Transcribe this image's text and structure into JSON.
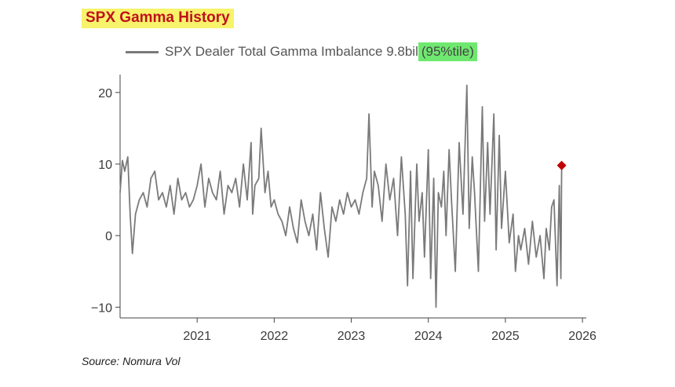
{
  "header": {
    "title": "SPX Gamma History"
  },
  "legend": {
    "series_label": "SPX Dealer Total Gamma Imbalance 9.8bil",
    "highlight": "(95%tile)"
  },
  "source": "Source: Nomura Vol",
  "colors": {
    "line": "#7a7a7a",
    "marker": "#c00000",
    "title_text": "#c0121c",
    "title_bg": "#f7f36a",
    "highlight_bg": "#6fe86f"
  },
  "chart_data": {
    "type": "line",
    "title": "SPX Gamma History",
    "xlabel": "",
    "ylabel": "",
    "xlim": [
      2020.0,
      2026.05
    ],
    "ylim": [
      -11.5,
      22.5
    ],
    "x_ticks": [
      2021,
      2022,
      2023,
      2024,
      2025,
      2026
    ],
    "y_ticks": [
      20,
      10,
      0,
      -10
    ],
    "grid": false,
    "legend_position": "top-left",
    "series": [
      {
        "name": "SPX Dealer Total Gamma Imbalance 9.8bil",
        "x": [
          2020.0,
          2020.03,
          2020.06,
          2020.1,
          2020.13,
          2020.16,
          2020.2,
          2020.25,
          2020.3,
          2020.35,
          2020.4,
          2020.45,
          2020.5,
          2020.55,
          2020.6,
          2020.65,
          2020.7,
          2020.75,
          2020.8,
          2020.85,
          2020.9,
          2020.95,
          2021.0,
          2021.05,
          2021.1,
          2021.15,
          2021.2,
          2021.25,
          2021.3,
          2021.35,
          2021.4,
          2021.45,
          2021.5,
          2021.55,
          2021.6,
          2021.65,
          2021.7,
          2021.72,
          2021.75,
          2021.8,
          2021.83,
          2021.88,
          2021.92,
          2021.96,
          2022.0,
          2022.05,
          2022.1,
          2022.15,
          2022.2,
          2022.25,
          2022.3,
          2022.35,
          2022.4,
          2022.45,
          2022.5,
          2022.55,
          2022.6,
          2022.65,
          2022.7,
          2022.75,
          2022.8,
          2022.85,
          2022.9,
          2022.95,
          2023.0,
          2023.05,
          2023.1,
          2023.15,
          2023.2,
          2023.23,
          2023.27,
          2023.3,
          2023.35,
          2023.4,
          2023.45,
          2023.5,
          2023.55,
          2023.6,
          2023.65,
          2023.7,
          2023.73,
          2023.77,
          2023.8,
          2023.85,
          2023.88,
          2023.92,
          2023.95,
          2024.0,
          2024.03,
          2024.07,
          2024.1,
          2024.13,
          2024.17,
          2024.2,
          2024.23,
          2024.27,
          2024.3,
          2024.35,
          2024.4,
          2024.45,
          2024.5,
          2024.53,
          2024.57,
          2024.6,
          2024.65,
          2024.7,
          2024.73,
          2024.77,
          2024.8,
          2024.85,
          2024.88,
          2024.92,
          2024.95,
          2025.0,
          2025.05,
          2025.1,
          2025.13,
          2025.17,
          2025.2,
          2025.25,
          2025.3,
          2025.35,
          2025.4,
          2025.45,
          2025.5,
          2025.53,
          2025.57,
          2025.6,
          2025.63,
          2025.67,
          2025.7,
          2025.72,
          2025.73
        ],
        "values": [
          6,
          10.5,
          9,
          11,
          3,
          -2.5,
          3,
          5,
          6,
          4,
          8,
          9,
          5,
          6,
          4,
          7,
          3,
          8,
          5,
          6,
          4,
          5,
          7,
          10,
          4,
          8,
          6,
          5,
          9,
          3,
          7,
          6,
          8,
          4,
          10,
          5,
          13,
          3,
          7,
          8,
          15,
          6,
          9,
          4,
          5,
          3,
          2,
          0,
          4,
          1,
          -1,
          5,
          2,
          0,
          3,
          -2,
          6,
          1,
          -3,
          4,
          2,
          5,
          3,
          6,
          4,
          5,
          3,
          6,
          8,
          17,
          4,
          9,
          7,
          2,
          10,
          5,
          8,
          0,
          11,
          3,
          -7,
          9,
          -6,
          10,
          2,
          6,
          -3,
          12,
          -6,
          8,
          -10,
          6,
          4,
          9,
          0,
          12,
          5,
          -5,
          13,
          3,
          21,
          1,
          11,
          6,
          -5,
          18,
          2,
          13,
          3,
          17,
          -2,
          14,
          1,
          9,
          -1,
          3,
          -5,
          0,
          -2,
          1,
          -4,
          2,
          -3,
          0,
          -6,
          1,
          -2,
          4,
          5,
          -7,
          7,
          -6,
          9.8
        ],
        "marker": {
          "x": 2025.73,
          "value": 9.8,
          "shape": "diamond"
        }
      }
    ]
  }
}
